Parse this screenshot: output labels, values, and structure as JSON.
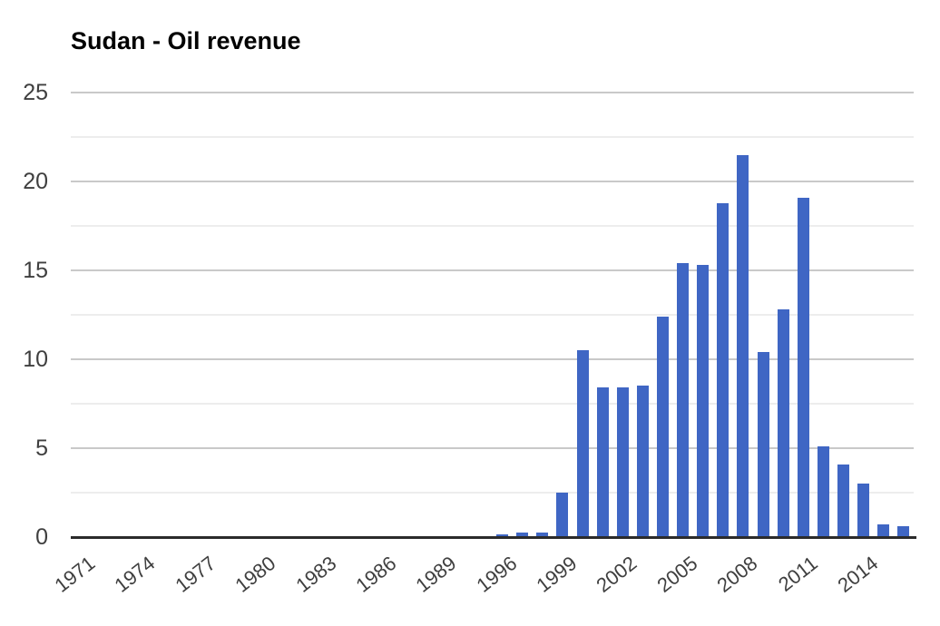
{
  "page": {
    "background": "#ffffff"
  },
  "colors": {
    "bar": "#3f66c4",
    "axis_line": "#2b2b2b",
    "grid_major": "#c9c9c9",
    "grid_minor": "#ededed",
    "tick_label": "#3f3f3f",
    "title": "#000000",
    "background": "#ffffff"
  },
  "chart_data": {
    "type": "bar",
    "title": "Sudan - Oil revenue",
    "xlabel": "",
    "ylabel": "",
    "legend": "none",
    "grid": "on",
    "ylim": [
      0,
      25
    ],
    "y_major_ticks": [
      0,
      5,
      10,
      15,
      20,
      25
    ],
    "y_minor_ticks": [
      2.5,
      7.5,
      12.5,
      17.5,
      22.5
    ],
    "x_tick_step": 3,
    "x_tick_labels": [
      "1971",
      "1974",
      "1977",
      "1980",
      "1983",
      "1986",
      "1989",
      "1996",
      "1999",
      "2002",
      "2005",
      "2008",
      "2011",
      "2014"
    ],
    "categories": [
      "1971",
      "1972",
      "1973",
      "1974",
      "1975",
      "1976",
      "1977",
      "1978",
      "1979",
      "1980",
      "1981",
      "1982",
      "1983",
      "1984",
      "1985",
      "1986",
      "1987",
      "1988",
      "1989",
      "1990",
      "1995",
      "1996",
      "1997",
      "1998",
      "1999",
      "2000",
      "2001",
      "2002",
      "2003",
      "2004",
      "2005",
      "2006",
      "2007",
      "2008",
      "2009",
      "2010",
      "2011",
      "2012",
      "2013",
      "2014",
      "2015",
      "2016"
    ],
    "values": [
      0,
      0,
      0,
      0,
      0,
      0,
      0,
      0,
      0,
      0,
      0,
      0,
      0,
      0,
      0,
      0,
      0,
      0,
      0,
      0,
      0,
      0.15,
      0.25,
      0.25,
      2.5,
      10.5,
      8.4,
      8.4,
      8.5,
      12.4,
      15.4,
      15.3,
      18.8,
      21.5,
      10.4,
      12.8,
      19.1,
      5.1,
      4.1,
      3.0,
      0.7,
      0.6
    ]
  }
}
